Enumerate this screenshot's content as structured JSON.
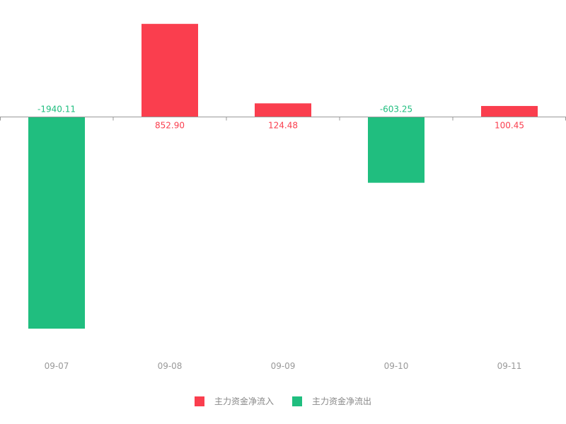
{
  "chart_data": {
    "type": "bar",
    "categories": [
      "09-07",
      "09-08",
      "09-09",
      "09-10",
      "09-11"
    ],
    "values": [
      -1940.11,
      852.9,
      124.48,
      -603.25,
      100.45
    ],
    "value_labels": [
      "-1940.11",
      "852.90",
      "124.48",
      "-603.25",
      "100.45"
    ],
    "ylim": [
      -2150,
      900
    ],
    "grid": false,
    "legend_position": "bottom-center",
    "series": [
      {
        "name": "主力资金净流入",
        "color": "#fa3e4e"
      },
      {
        "name": "主力资金净流出",
        "color": "#20be7f"
      }
    ]
  },
  "colors": {
    "inflow": "#fa3e4e",
    "outflow": "#20be7f",
    "axis": "#999999",
    "tick_text": "#999999",
    "legend_text": "#888888"
  }
}
